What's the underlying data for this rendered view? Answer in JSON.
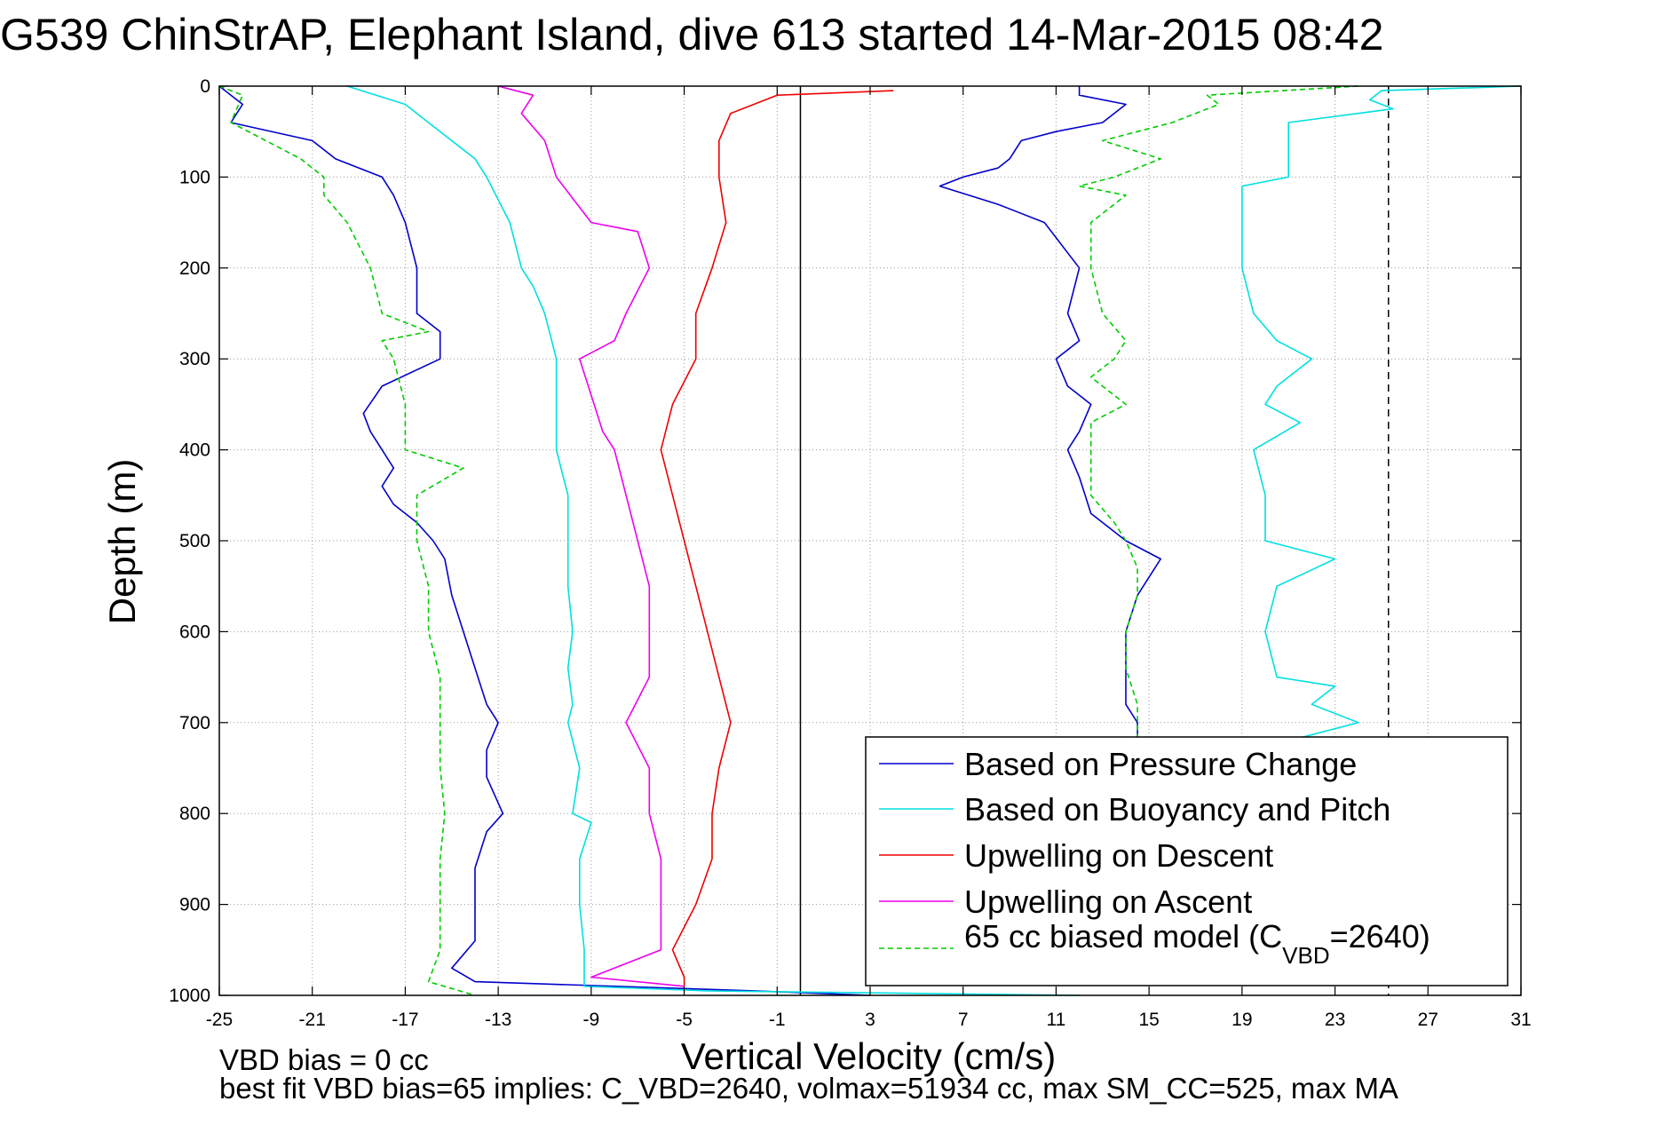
{
  "chart_data": {
    "type": "line",
    "title": "G539 ChinStrAP, Elephant Island, dive 613 started 14-Mar-2015 08:42",
    "xlabel": "Vertical Velocity (cm/s)",
    "ylabel": "Depth (m)",
    "xlim": [
      -25,
      31
    ],
    "ylim": [
      0,
      1000
    ],
    "y_reversed": true,
    "grid": true,
    "legend_position": "bottom-right",
    "x_ticks": [
      -25,
      -21,
      -17,
      -13,
      -9,
      -5,
      -1,
      3,
      7,
      11,
      15,
      19,
      23,
      27,
      31
    ],
    "y_ticks": [
      0,
      100,
      200,
      300,
      400,
      500,
      600,
      700,
      800,
      900,
      1000
    ],
    "vertical_lines": [
      {
        "x": 0,
        "style": "solid",
        "color": "#000000"
      },
      {
        "x": 25.3,
        "style": "dashed",
        "color": "#000000"
      }
    ],
    "series": [
      {
        "name": "Based on Pressure Change",
        "color": "#0000cc",
        "style": "solid",
        "segments": [
          {
            "depth": [
              0,
              20,
              40,
              60,
              80,
              100,
              120,
              150,
              200,
              250,
              270,
              300,
              330,
              360,
              380,
              400,
              420,
              440,
              460,
              480,
              500,
              520,
              560,
              600,
              640,
              680,
              700,
              730,
              760,
              800,
              820,
              860,
              900,
              940,
              970,
              985,
              995,
              1000
            ],
            "velocity": [
              -25,
              -24,
              -24.5,
              -21,
              -20,
              -18,
              -17.5,
              -17,
              -16.5,
              -16.5,
              -15.5,
              -15.5,
              -18,
              -18.8,
              -18.5,
              -18,
              -17.5,
              -18,
              -17.5,
              -16.5,
              -15.8,
              -15.3,
              -15,
              -14.5,
              -14,
              -13.5,
              -13,
              -13.5,
              -13.5,
              -12.8,
              -13.5,
              -14,
              -14,
              -14,
              -15,
              -14,
              -2,
              3
            ]
          },
          {
            "depth": [
              0,
              10,
              20,
              40,
              50,
              60,
              80,
              90,
              100,
              110,
              130,
              150,
              200,
              250,
              280,
              300,
              330,
              350,
              380,
              400,
              430,
              470,
              480,
              500,
              520,
              560,
              600,
              640,
              680,
              700,
              720
            ],
            "velocity": [
              12,
              12,
              14,
              13,
              11,
              9.5,
              9,
              8.5,
              7,
              6,
              8.5,
              10.5,
              12,
              11.5,
              12,
              11,
              11.5,
              12.5,
              12,
              11.5,
              12,
              12.5,
              13,
              14,
              15.5,
              14.5,
              14,
              14,
              14,
              14.5,
              14.5
            ]
          }
        ]
      },
      {
        "name": "Based on Buoyancy and Pitch",
        "color": "#00e0e0",
        "style": "solid",
        "segments": [
          {
            "depth": [
              0,
              20,
              40,
              80,
              100,
              150,
              200,
              220,
              250,
              300,
              340,
              380,
              400,
              450,
              500,
              550,
              600,
              640,
              680,
              700,
              750,
              800,
              810,
              850,
              900,
              950,
              990,
              995,
              1000
            ],
            "velocity": [
              -19.5,
              -17,
              -16,
              -14,
              -13.5,
              -12.5,
              -12,
              -11.5,
              -11,
              -10.5,
              -10.5,
              -10.5,
              -10.5,
              -10,
              -10,
              -10,
              -9.8,
              -10,
              -9.8,
              -10,
              -9.5,
              -9.8,
              -9,
              -9.5,
              -9.5,
              -9.3,
              -9.3,
              -4,
              12
            ]
          },
          {
            "depth": [
              0,
              5,
              15,
              25,
              40,
              60,
              80,
              100,
              110,
              150,
              200,
              250,
              280,
              300,
              330,
              350,
              370,
              400,
              450,
              500,
              520,
              550,
              600,
              650,
              660,
              680,
              700,
              720
            ],
            "velocity": [
              31,
              25,
              24.5,
              25.5,
              21,
              21,
              21,
              21,
              19,
              19,
              19,
              19.5,
              20.5,
              22,
              20.5,
              20,
              21.5,
              19.5,
              20,
              20,
              23,
              20.5,
              20,
              20.5,
              23,
              22,
              24,
              21
            ]
          }
        ]
      },
      {
        "name": "Upwelling on Descent",
        "color": "#ee0000",
        "style": "solid",
        "segments": [
          {
            "depth": [
              5,
              10,
              30,
              60,
              100,
              150,
              200,
              250,
              300,
              350,
              400,
              450,
              500,
              550,
              600,
              650,
              700,
              750,
              800,
              850,
              900,
              950,
              980,
              990
            ],
            "velocity": [
              4,
              -1,
              -3,
              -3.5,
              -3.5,
              -3.2,
              -3.8,
              -4.5,
              -4.5,
              -5.5,
              -6,
              -5.5,
              -5,
              -4.5,
              -4,
              -3.5,
              -3,
              -3.5,
              -3.8,
              -3.8,
              -4.5,
              -5.5,
              -5,
              -5
            ]
          }
        ]
      },
      {
        "name": "Upwelling on Ascent",
        "color": "#ee00ee",
        "style": "solid",
        "segments": [
          {
            "depth": [
              0,
              10,
              30,
              60,
              100,
              150,
              160,
              200,
              250,
              280,
              300,
              340,
              380,
              400,
              450,
              500,
              550,
              600,
              650,
              700,
              750,
              800,
              850,
              900,
              950,
              980,
              990
            ],
            "velocity": [
              -13,
              -11.5,
              -12,
              -11,
              -10.5,
              -9,
              -7,
              -6.5,
              -7.5,
              -8,
              -9.5,
              -9,
              -8.5,
              -8,
              -7.5,
              -7,
              -6.5,
              -6.5,
              -6.5,
              -7.5,
              -6.5,
              -6.5,
              -6,
              -6,
              -6,
              -9,
              -5
            ]
          }
        ]
      },
      {
        "name": "65 cc biased model (C_VBD=2640)",
        "color": "#00cc00",
        "style": "dashed",
        "segments": [
          {
            "depth": [
              0,
              10,
              40,
              60,
              80,
              100,
              120,
              150,
              200,
              250,
              270,
              280,
              300,
              350,
              400,
              420,
              450,
              500,
              550,
              600,
              650,
              700,
              750,
              800,
              850,
              900,
              950,
              985,
              1000
            ],
            "velocity": [
              -25,
              -24,
              -24.5,
              -23,
              -21.5,
              -20.5,
              -20.5,
              -19.5,
              -18.5,
              -18,
              -16,
              -18,
              -17.5,
              -17,
              -17,
              -14.5,
              -16.5,
              -16.5,
              -16,
              -16,
              -15.5,
              -15.5,
              -15.5,
              -15.3,
              -15.5,
              -15.5,
              -15.5,
              -16,
              -14
            ]
          },
          {
            "depth": [
              0,
              10,
              20,
              40,
              60,
              80,
              100,
              110,
              120,
              150,
              200,
              250,
              280,
              300,
              320,
              350,
              370,
              400,
              420,
              450,
              480,
              500,
              530,
              560,
              600,
              640,
              680,
              700,
              720
            ],
            "velocity": [
              24,
              17.5,
              18,
              16,
              13,
              15.5,
              13.5,
              12,
              14,
              12.5,
              12.5,
              13,
              14,
              13.5,
              12.5,
              14,
              12.5,
              12.5,
              12.5,
              12.5,
              13.5,
              14,
              14.5,
              14.5,
              14,
              14,
              14.5,
              14.5,
              14.5
            ]
          }
        ]
      }
    ]
  },
  "footnotes": {
    "line1": "VBD bias = 0 cc",
    "line2": "best fit VBD bias=65 implies: C_VBD=2640, volmax=51934 cc, max SM_CC=525, max MA"
  },
  "legend": {
    "entries": [
      {
        "text": "Based on Pressure Change",
        "color": "#0000cc",
        "style": "solid"
      },
      {
        "text": "Based on Buoyancy and Pitch",
        "color": "#00e0e0",
        "style": "solid"
      },
      {
        "text": "Upwelling on Descent",
        "color": "#ee0000",
        "style": "solid"
      },
      {
        "text": "Upwelling on Ascent",
        "color": "#ee00ee",
        "style": "solid"
      },
      {
        "text_main": "65 cc biased model (C",
        "text_sub": "VBD",
        "text_tail": "=2640)",
        "color": "#00cc00",
        "style": "dashed"
      }
    ]
  }
}
